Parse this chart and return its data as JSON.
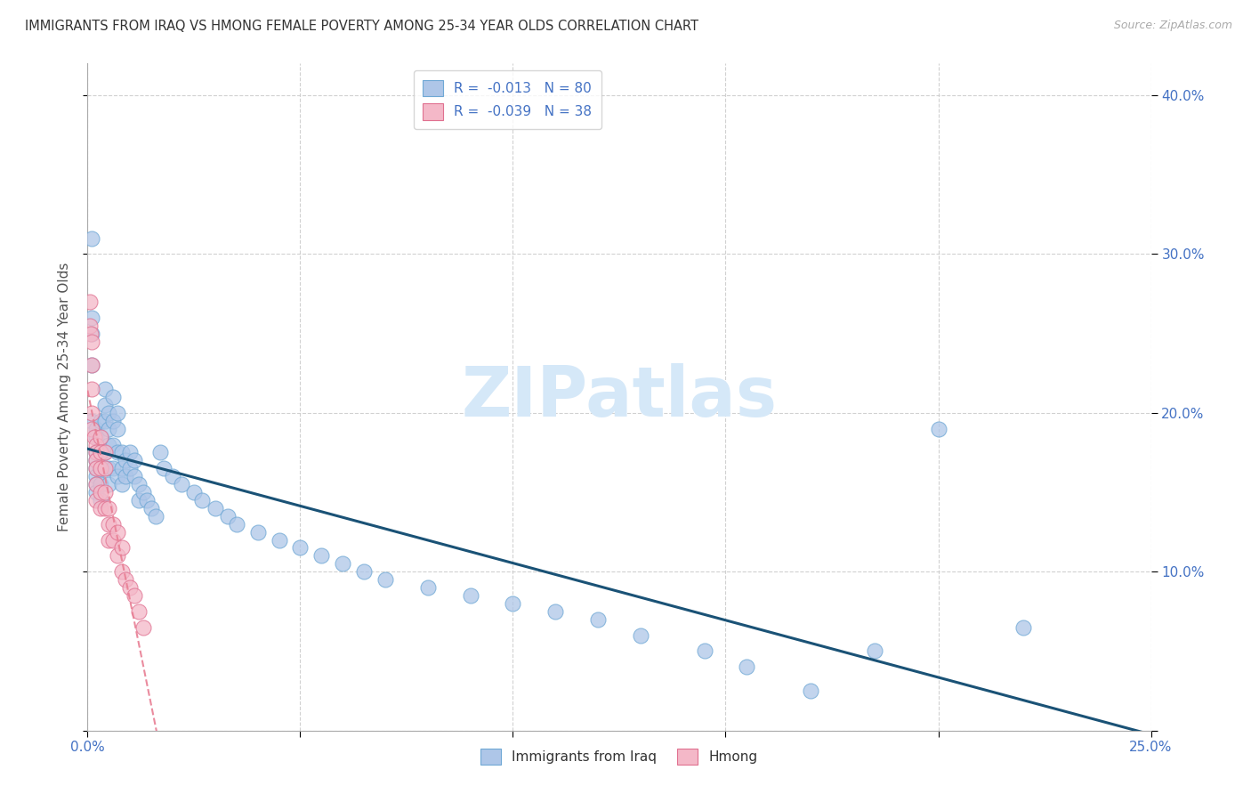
{
  "title": "IMMIGRANTS FROM IRAQ VS HMONG FEMALE POVERTY AMONG 25-34 YEAR OLDS CORRELATION CHART",
  "source": "Source: ZipAtlas.com",
  "ylabel": "Female Poverty Among 25-34 Year Olds",
  "xlim": [
    0.0,
    0.25
  ],
  "ylim": [
    0.0,
    0.42
  ],
  "iraq_color": "#aec6e8",
  "iraq_edge_color": "#6fa8d5",
  "hmong_color": "#f4b8c8",
  "hmong_edge_color": "#e07090",
  "iraq_R": -0.013,
  "iraq_N": 80,
  "hmong_R": -0.039,
  "hmong_N": 38,
  "text_color": "#4472c4",
  "trendline_iraq_color": "#1a5276",
  "trendline_hmong_color": "#e87f94",
  "grid_color": "#cccccc",
  "title_color": "#333333",
  "watermark_color": "#d5e8f8",
  "iraq_x": [
    0.001,
    0.001,
    0.001,
    0.001,
    0.001,
    0.002,
    0.002,
    0.002,
    0.002,
    0.002,
    0.002,
    0.002,
    0.002,
    0.003,
    0.003,
    0.003,
    0.003,
    0.003,
    0.003,
    0.004,
    0.004,
    0.004,
    0.004,
    0.004,
    0.005,
    0.005,
    0.005,
    0.005,
    0.005,
    0.006,
    0.006,
    0.006,
    0.006,
    0.007,
    0.007,
    0.007,
    0.007,
    0.008,
    0.008,
    0.008,
    0.009,
    0.009,
    0.01,
    0.01,
    0.011,
    0.011,
    0.012,
    0.012,
    0.013,
    0.014,
    0.015,
    0.016,
    0.017,
    0.018,
    0.02,
    0.022,
    0.025,
    0.027,
    0.03,
    0.033,
    0.035,
    0.04,
    0.045,
    0.05,
    0.055,
    0.06,
    0.065,
    0.07,
    0.08,
    0.09,
    0.1,
    0.11,
    0.12,
    0.13,
    0.145,
    0.155,
    0.17,
    0.185,
    0.2,
    0.22
  ],
  "iraq_y": [
    0.31,
    0.26,
    0.25,
    0.23,
    0.195,
    0.19,
    0.185,
    0.175,
    0.17,
    0.165,
    0.16,
    0.155,
    0.15,
    0.195,
    0.185,
    0.175,
    0.165,
    0.155,
    0.145,
    0.215,
    0.205,
    0.195,
    0.175,
    0.165,
    0.2,
    0.19,
    0.18,
    0.165,
    0.155,
    0.21,
    0.195,
    0.18,
    0.165,
    0.2,
    0.19,
    0.175,
    0.16,
    0.175,
    0.165,
    0.155,
    0.17,
    0.16,
    0.175,
    0.165,
    0.17,
    0.16,
    0.155,
    0.145,
    0.15,
    0.145,
    0.14,
    0.135,
    0.175,
    0.165,
    0.16,
    0.155,
    0.15,
    0.145,
    0.14,
    0.135,
    0.13,
    0.125,
    0.12,
    0.115,
    0.11,
    0.105,
    0.1,
    0.095,
    0.09,
    0.085,
    0.08,
    0.075,
    0.07,
    0.06,
    0.05,
    0.04,
    0.025,
    0.05,
    0.19,
    0.065
  ],
  "hmong_x": [
    0.0005,
    0.0005,
    0.0008,
    0.001,
    0.001,
    0.001,
    0.001,
    0.001,
    0.0015,
    0.002,
    0.002,
    0.002,
    0.002,
    0.002,
    0.002,
    0.003,
    0.003,
    0.003,
    0.003,
    0.003,
    0.004,
    0.004,
    0.004,
    0.004,
    0.005,
    0.005,
    0.005,
    0.006,
    0.006,
    0.007,
    0.007,
    0.008,
    0.008,
    0.009,
    0.01,
    0.011,
    0.012,
    0.013
  ],
  "hmong_y": [
    0.27,
    0.255,
    0.25,
    0.245,
    0.23,
    0.215,
    0.2,
    0.19,
    0.185,
    0.18,
    0.175,
    0.17,
    0.165,
    0.155,
    0.145,
    0.185,
    0.175,
    0.165,
    0.15,
    0.14,
    0.175,
    0.165,
    0.15,
    0.14,
    0.14,
    0.13,
    0.12,
    0.13,
    0.12,
    0.125,
    0.11,
    0.115,
    0.1,
    0.095,
    0.09,
    0.085,
    0.075,
    0.065
  ]
}
